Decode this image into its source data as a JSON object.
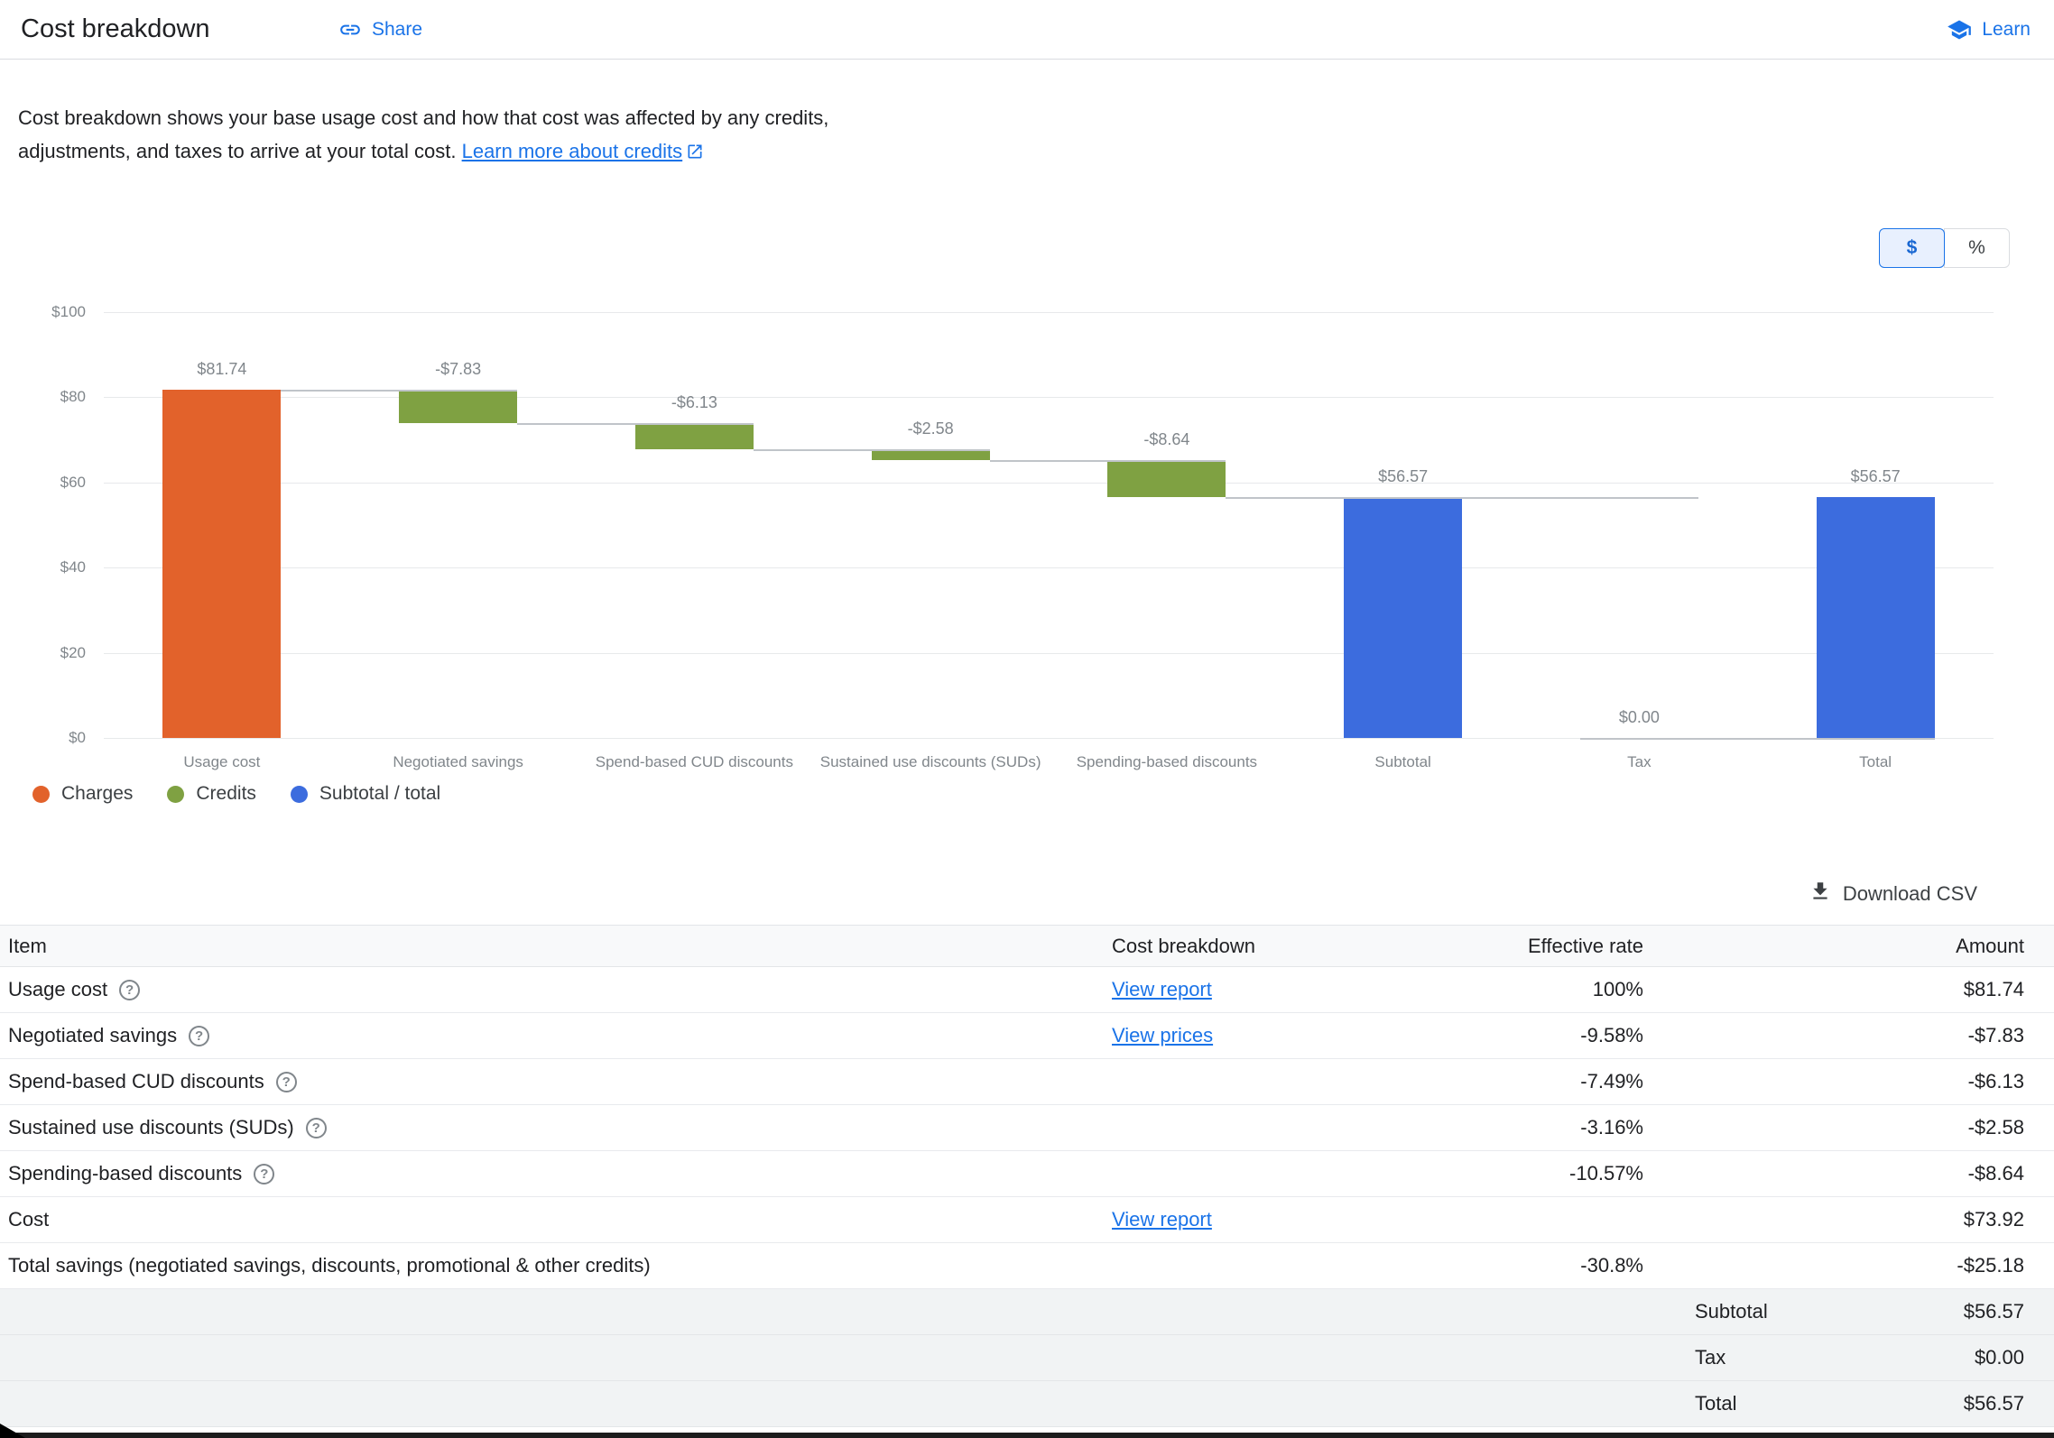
{
  "theme": {
    "accent": "#1a73e8"
  },
  "header": {
    "title": "Cost breakdown",
    "share_label": "Share",
    "learn_label": "Learn"
  },
  "description": {
    "text": "Cost breakdown shows your base usage cost and how that cost was affected by any credits, adjustments, and taxes to arrive at your total cost.",
    "link_text": "Learn more about credits"
  },
  "unit_toggle": {
    "dollar": "$",
    "percent": "%",
    "selected": "$"
  },
  "chart_data": {
    "type": "bar",
    "subtype": "waterfall",
    "title": "",
    "xlabel": "",
    "ylabel": "",
    "ylim": [
      0,
      100
    ],
    "grid": "horizontal",
    "legend_position": "bottom-left",
    "y_ticks": [
      "$0",
      "$20",
      "$40",
      "$60",
      "$80",
      "$100"
    ],
    "categories": [
      "Usage cost",
      "Negotiated savings",
      "Spend-based CUD discounts",
      "Sustained use discounts (SUDs)",
      "Spending-based discounts",
      "Subtotal",
      "Tax",
      "Total"
    ],
    "series": [
      {
        "label": "$81.74",
        "value": 81.74,
        "kind": "charge"
      },
      {
        "label": "-$7.83",
        "value": -7.83,
        "kind": "credit"
      },
      {
        "label": "-$6.13",
        "value": -6.13,
        "kind": "credit"
      },
      {
        "label": "-$2.58",
        "value": -2.58,
        "kind": "credit"
      },
      {
        "label": "-$8.64",
        "value": -8.64,
        "kind": "credit"
      },
      {
        "label": "$56.57",
        "value": 56.57,
        "kind": "total"
      },
      {
        "label": "$0.00",
        "value": 0,
        "kind": "total"
      },
      {
        "label": "$56.57",
        "value": 56.57,
        "kind": "total"
      }
    ],
    "colors": {
      "charge": "#e2622b",
      "credit": "#7fa142",
      "total": "#3c6cde"
    },
    "legend": [
      {
        "label": "Charges",
        "color": "#e2622b"
      },
      {
        "label": "Credits",
        "color": "#7fa142"
      },
      {
        "label": "Subtotal / total",
        "color": "#3c6cde"
      }
    ]
  },
  "download": {
    "label": "Download CSV"
  },
  "table": {
    "columns": [
      "Item",
      "Cost breakdown",
      "Effective rate",
      "Amount"
    ],
    "rows": [
      {
        "item": "Usage cost",
        "help": true,
        "link": "View report",
        "rate": "100%",
        "amount": "$81.74"
      },
      {
        "item": "Negotiated savings",
        "help": true,
        "link": "View prices",
        "rate": "-9.58%",
        "amount": "-$7.83"
      },
      {
        "item": "Spend-based CUD discounts",
        "help": true,
        "link": "",
        "rate": "-7.49%",
        "amount": "-$6.13"
      },
      {
        "item": "Sustained use discounts (SUDs)",
        "help": true,
        "link": "",
        "rate": "-3.16%",
        "amount": "-$2.58"
      },
      {
        "item": "Spending-based discounts",
        "help": true,
        "link": "",
        "rate": "-10.57%",
        "amount": "-$8.64"
      },
      {
        "item": "Cost",
        "help": false,
        "link": "View report",
        "rate": "",
        "amount": "$73.92"
      },
      {
        "item": "Total savings (negotiated savings, discounts, promotional & other credits)",
        "help": false,
        "link": "",
        "rate": "-30.8%",
        "amount": "-$25.18"
      }
    ],
    "summary_rows": [
      {
        "label": "Subtotal",
        "amount": "$56.57"
      },
      {
        "label": "Tax",
        "amount": "$0.00"
      },
      {
        "label": "Total",
        "amount": "$56.57"
      }
    ]
  }
}
